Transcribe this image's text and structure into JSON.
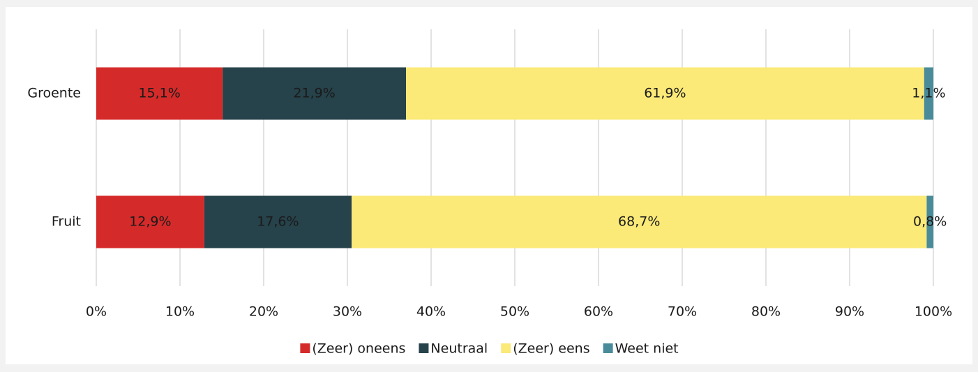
{
  "chart_data": {
    "type": "stacked-barh",
    "categories": [
      "Groente",
      "Fruit"
    ],
    "series": [
      {
        "name": "(Zeer) oneens",
        "color": "#d42b2a",
        "values": [
          15.1,
          12.9
        ],
        "value_labels": [
          "15,1%",
          "12,9%"
        ],
        "label_color": "#ffffff"
      },
      {
        "name": "Neutraal",
        "color": "#26424a",
        "values": [
          21.9,
          17.6
        ],
        "value_labels": [
          "21,9%",
          "17,6%"
        ],
        "label_color": "#ffffff"
      },
      {
        "name": "(Zeer) eens",
        "color": "#fbe978",
        "values": [
          61.9,
          68.7
        ],
        "value_labels": [
          "61,9%",
          "68,7%"
        ],
        "label_color": "#1a1a1a"
      },
      {
        "name": "Weet niet",
        "color": "#4a8b99",
        "values": [
          1.1,
          0.8
        ],
        "value_labels": [
          "1,1%",
          "0,8%"
        ],
        "label_color": "#1a1a1a"
      }
    ],
    "xlim": [
      0,
      100
    ],
    "xticks": [
      {
        "value": 0,
        "label": "0%"
      },
      {
        "value": 10,
        "label": "10%"
      },
      {
        "value": 20,
        "label": "20%"
      },
      {
        "value": 30,
        "label": "30%"
      },
      {
        "value": 40,
        "label": "40%"
      },
      {
        "value": 50,
        "label": "50%"
      },
      {
        "value": 60,
        "label": "60%"
      },
      {
        "value": 70,
        "label": "70%"
      },
      {
        "value": 80,
        "label": "80%"
      },
      {
        "value": 90,
        "label": "90%"
      },
      {
        "value": 100,
        "label": "100%"
      }
    ],
    "grid": true,
    "legend": "bottom"
  }
}
